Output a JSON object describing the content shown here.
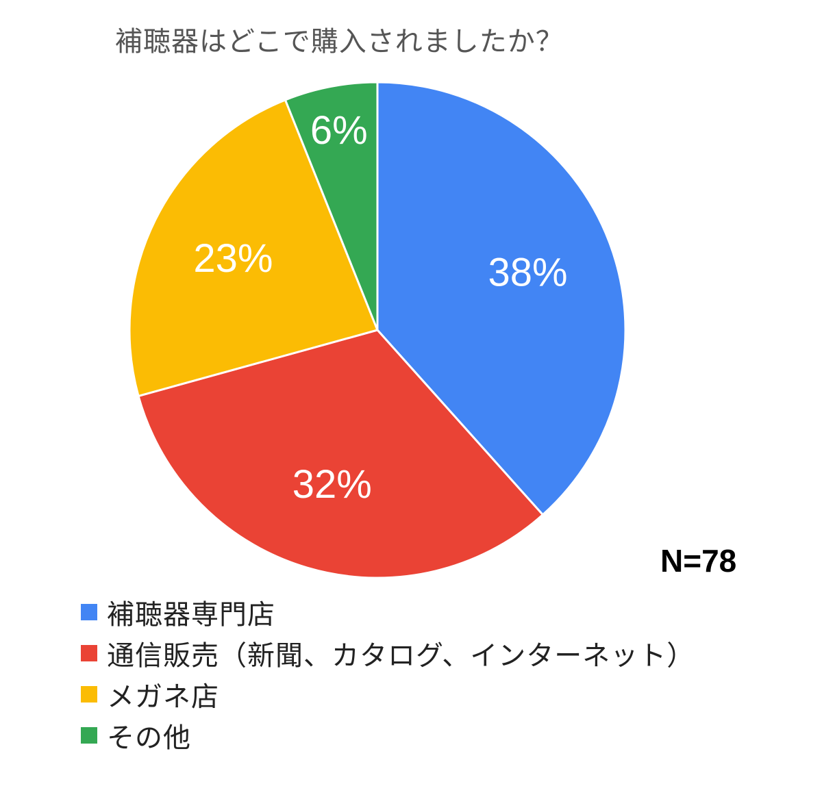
{
  "chart_data": {
    "type": "pie",
    "title": "補聴器はどこで購入されましたか？",
    "annotation": "N=78",
    "legend_position": "bottom",
    "slices": [
      {
        "label": "補聴器専門店",
        "value": 38,
        "display": "38%",
        "color": "#4285F4"
      },
      {
        "label": "通信販売（新聞、カタログ、インターネット）",
        "value": 32,
        "display": "32%",
        "color": "#EA4335"
      },
      {
        "label": "メガネ店",
        "value": 23,
        "display": "23%",
        "color": "#FBBC04"
      },
      {
        "label": "その他",
        "value": 6,
        "display": "6%",
        "color": "#34A853"
      }
    ]
  }
}
